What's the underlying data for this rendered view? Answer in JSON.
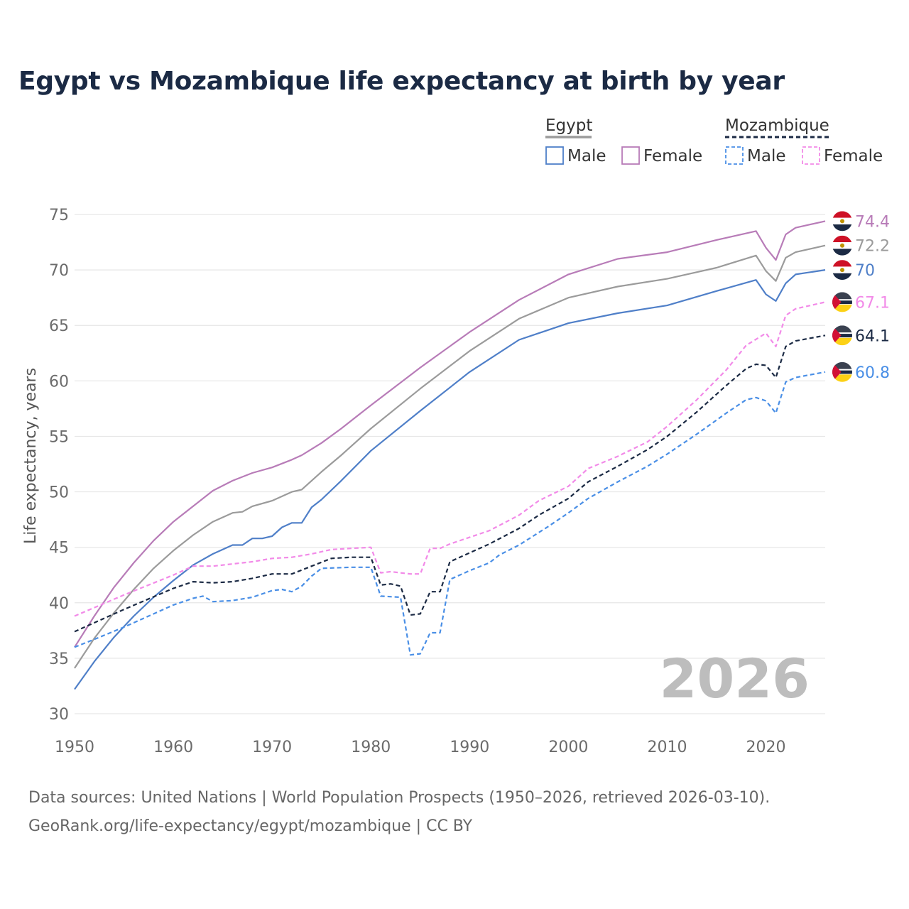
{
  "title": "Egypt vs Mozambique life expectancy at birth by year",
  "source_line1": "Data sources: United Nations | World Population Prospects (1950–2026, retrieved 2026-03-10).",
  "source_line2": "GeoRank.org/life-expectancy/egypt/mozambique | CC BY",
  "legend": {
    "egypt": {
      "title": "Egypt",
      "male": "Male",
      "female": "Female"
    },
    "mozambique": {
      "title": "Mozambique",
      "male": "Male",
      "female": "Female"
    }
  },
  "colors": {
    "egypt_total": "#9b9b9b",
    "egypt_male": "#4f7fc8",
    "egypt_female": "#b87cb8",
    "moz_total": "#1b2a44",
    "moz_male": "#4a8fe6",
    "moz_female": "#f28ae8",
    "grid": "#e6e6e6",
    "year_label": "#bdbdbd"
  },
  "chart_data": {
    "type": "line",
    "title": "Egypt vs Mozambique life expectancy at birth by year",
    "xlabel": "",
    "ylabel": "Life expectancy, years",
    "xlim": [
      1950,
      2026
    ],
    "ylim": [
      30,
      75
    ],
    "xticks": [
      1950,
      1960,
      1970,
      1980,
      1990,
      2000,
      2010,
      2020
    ],
    "yticks": [
      30,
      35,
      40,
      45,
      50,
      55,
      60,
      65,
      70,
      75
    ],
    "current_year_label": "2026",
    "series": [
      {
        "key": "egypt_female",
        "name": "Egypt Female",
        "country": "Egypt",
        "sex": "Female",
        "dashed": false,
        "end_label": "74.4",
        "points": [
          [
            1950,
            36.0
          ],
          [
            1952,
            38.8
          ],
          [
            1954,
            41.4
          ],
          [
            1956,
            43.6
          ],
          [
            1958,
            45.6
          ],
          [
            1960,
            47.3
          ],
          [
            1962,
            48.7
          ],
          [
            1964,
            50.1
          ],
          [
            1966,
            51.0
          ],
          [
            1968,
            51.7
          ],
          [
            1970,
            52.2
          ],
          [
            1972,
            52.9
          ],
          [
            1973,
            53.3
          ],
          [
            1975,
            54.4
          ],
          [
            1977,
            55.7
          ],
          [
            1980,
            57.8
          ],
          [
            1985,
            61.2
          ],
          [
            1990,
            64.4
          ],
          [
            1995,
            67.3
          ],
          [
            2000,
            69.6
          ],
          [
            2005,
            71.0
          ],
          [
            2010,
            71.6
          ],
          [
            2015,
            72.7
          ],
          [
            2019,
            73.5
          ],
          [
            2020,
            72.0
          ],
          [
            2021,
            70.9
          ],
          [
            2022,
            73.2
          ],
          [
            2023,
            73.8
          ],
          [
            2026,
            74.4
          ]
        ]
      },
      {
        "key": "egypt_total",
        "name": "Egypt",
        "country": "Egypt",
        "sex": "Total",
        "dashed": false,
        "end_label": "72.2",
        "points": [
          [
            1950,
            34.1
          ],
          [
            1952,
            36.8
          ],
          [
            1954,
            39.1
          ],
          [
            1956,
            41.2
          ],
          [
            1958,
            43.1
          ],
          [
            1960,
            44.7
          ],
          [
            1962,
            46.1
          ],
          [
            1964,
            47.3
          ],
          [
            1966,
            48.1
          ],
          [
            1967,
            48.2
          ],
          [
            1968,
            48.7
          ],
          [
            1970,
            49.2
          ],
          [
            1972,
            50.0
          ],
          [
            1973,
            50.2
          ],
          [
            1975,
            51.8
          ],
          [
            1977,
            53.3
          ],
          [
            1980,
            55.7
          ],
          [
            1985,
            59.3
          ],
          [
            1990,
            62.7
          ],
          [
            1995,
            65.6
          ],
          [
            2000,
            67.5
          ],
          [
            2005,
            68.5
          ],
          [
            2010,
            69.2
          ],
          [
            2015,
            70.2
          ],
          [
            2019,
            71.3
          ],
          [
            2020,
            69.9
          ],
          [
            2021,
            69.0
          ],
          [
            2022,
            71.1
          ],
          [
            2023,
            71.6
          ],
          [
            2026,
            72.2
          ]
        ]
      },
      {
        "key": "egypt_male",
        "name": "Egypt Male",
        "country": "Egypt",
        "sex": "Male",
        "dashed": false,
        "end_label": "70",
        "points": [
          [
            1950,
            32.2
          ],
          [
            1952,
            34.7
          ],
          [
            1954,
            36.9
          ],
          [
            1956,
            38.8
          ],
          [
            1958,
            40.5
          ],
          [
            1960,
            42.0
          ],
          [
            1962,
            43.4
          ],
          [
            1964,
            44.4
          ],
          [
            1966,
            45.2
          ],
          [
            1967,
            45.2
          ],
          [
            1968,
            45.8
          ],
          [
            1969,
            45.8
          ],
          [
            1970,
            46.0
          ],
          [
            1971,
            46.8
          ],
          [
            1972,
            47.2
          ],
          [
            1973,
            47.2
          ],
          [
            1974,
            48.6
          ],
          [
            1975,
            49.3
          ],
          [
            1977,
            51.0
          ],
          [
            1980,
            53.7
          ],
          [
            1985,
            57.3
          ],
          [
            1990,
            60.8
          ],
          [
            1995,
            63.7
          ],
          [
            2000,
            65.2
          ],
          [
            2005,
            66.1
          ],
          [
            2010,
            66.8
          ],
          [
            2015,
            68.1
          ],
          [
            2019,
            69.1
          ],
          [
            2020,
            67.8
          ],
          [
            2021,
            67.2
          ],
          [
            2022,
            68.8
          ],
          [
            2023,
            69.6
          ],
          [
            2026,
            70.0
          ]
        ]
      },
      {
        "key": "moz_female",
        "name": "Mozambique Female",
        "country": "Mozambique",
        "sex": "Female",
        "dashed": true,
        "end_label": "67.1",
        "points": [
          [
            1950,
            38.8
          ],
          [
            1955,
            40.7
          ],
          [
            1960,
            42.5
          ],
          [
            1962,
            43.3
          ],
          [
            1964,
            43.3
          ],
          [
            1966,
            43.5
          ],
          [
            1968,
            43.7
          ],
          [
            1970,
            44.0
          ],
          [
            1972,
            44.1
          ],
          [
            1974,
            44.4
          ],
          [
            1976,
            44.8
          ],
          [
            1978,
            44.9
          ],
          [
            1980,
            45.0
          ],
          [
            1981,
            42.7
          ],
          [
            1982,
            42.8
          ],
          [
            1983,
            42.7
          ],
          [
            1984,
            42.6
          ],
          [
            1985,
            42.6
          ],
          [
            1986,
            44.9
          ],
          [
            1987,
            44.9
          ],
          [
            1988,
            45.3
          ],
          [
            1990,
            45.9
          ],
          [
            1992,
            46.5
          ],
          [
            1995,
            47.9
          ],
          [
            1997,
            49.2
          ],
          [
            2000,
            50.5
          ],
          [
            2002,
            52.1
          ],
          [
            2005,
            53.2
          ],
          [
            2008,
            54.5
          ],
          [
            2010,
            55.9
          ],
          [
            2013,
            58.3
          ],
          [
            2016,
            61.0
          ],
          [
            2018,
            63.2
          ],
          [
            2020,
            64.3
          ],
          [
            2021,
            63.1
          ],
          [
            2022,
            65.9
          ],
          [
            2023,
            66.5
          ],
          [
            2026,
            67.1
          ]
        ]
      },
      {
        "key": "moz_total",
        "name": "Mozambique",
        "country": "Mozambique",
        "sex": "Total",
        "dashed": true,
        "end_label": "64.1",
        "points": [
          [
            1950,
            37.4
          ],
          [
            1955,
            39.4
          ],
          [
            1960,
            41.3
          ],
          [
            1962,
            41.9
          ],
          [
            1964,
            41.8
          ],
          [
            1966,
            41.9
          ],
          [
            1968,
            42.2
          ],
          [
            1970,
            42.6
          ],
          [
            1972,
            42.6
          ],
          [
            1974,
            43.3
          ],
          [
            1976,
            44.0
          ],
          [
            1978,
            44.1
          ],
          [
            1980,
            44.1
          ],
          [
            1981,
            41.6
          ],
          [
            1982,
            41.7
          ],
          [
            1983,
            41.5
          ],
          [
            1984,
            38.9
          ],
          [
            1985,
            39.0
          ],
          [
            1986,
            41.0
          ],
          [
            1987,
            41.0
          ],
          [
            1988,
            43.7
          ],
          [
            1990,
            44.5
          ],
          [
            1992,
            45.3
          ],
          [
            1995,
            46.7
          ],
          [
            1997,
            47.9
          ],
          [
            2000,
            49.4
          ],
          [
            2002,
            50.9
          ],
          [
            2005,
            52.3
          ],
          [
            2008,
            53.8
          ],
          [
            2010,
            55.0
          ],
          [
            2013,
            57.2
          ],
          [
            2016,
            59.6
          ],
          [
            2018,
            61.1
          ],
          [
            2019,
            61.5
          ],
          [
            2020,
            61.4
          ],
          [
            2021,
            60.3
          ],
          [
            2022,
            63.1
          ],
          [
            2023,
            63.6
          ],
          [
            2026,
            64.1
          ]
        ]
      },
      {
        "key": "moz_male",
        "name": "Mozambique Male",
        "country": "Mozambique",
        "sex": "Male",
        "dashed": true,
        "end_label": "60.8",
        "points": [
          [
            1950,
            36.0
          ],
          [
            1952,
            36.7
          ],
          [
            1955,
            37.8
          ],
          [
            1957,
            38.6
          ],
          [
            1960,
            39.8
          ],
          [
            1962,
            40.4
          ],
          [
            1963,
            40.6
          ],
          [
            1964,
            40.1
          ],
          [
            1966,
            40.2
          ],
          [
            1968,
            40.5
          ],
          [
            1970,
            41.1
          ],
          [
            1971,
            41.2
          ],
          [
            1972,
            41.0
          ],
          [
            1973,
            41.5
          ],
          [
            1974,
            42.4
          ],
          [
            1975,
            43.1
          ],
          [
            1978,
            43.2
          ],
          [
            1980,
            43.2
          ],
          [
            1981,
            40.6
          ],
          [
            1983,
            40.5
          ],
          [
            1984,
            35.3
          ],
          [
            1985,
            35.4
          ],
          [
            1986,
            37.3
          ],
          [
            1987,
            37.3
          ],
          [
            1988,
            42.1
          ],
          [
            1990,
            42.9
          ],
          [
            1992,
            43.6
          ],
          [
            1993,
            44.3
          ],
          [
            1995,
            45.2
          ],
          [
            1998,
            46.9
          ],
          [
            2000,
            48.1
          ],
          [
            2002,
            49.4
          ],
          [
            2005,
            50.9
          ],
          [
            2008,
            52.3
          ],
          [
            2010,
            53.4
          ],
          [
            2013,
            55.2
          ],
          [
            2016,
            57.1
          ],
          [
            2018,
            58.3
          ],
          [
            2019,
            58.5
          ],
          [
            2020,
            58.2
          ],
          [
            2021,
            57.1
          ],
          [
            2022,
            59.9
          ],
          [
            2023,
            60.3
          ],
          [
            2026,
            60.8
          ]
        ]
      }
    ]
  }
}
